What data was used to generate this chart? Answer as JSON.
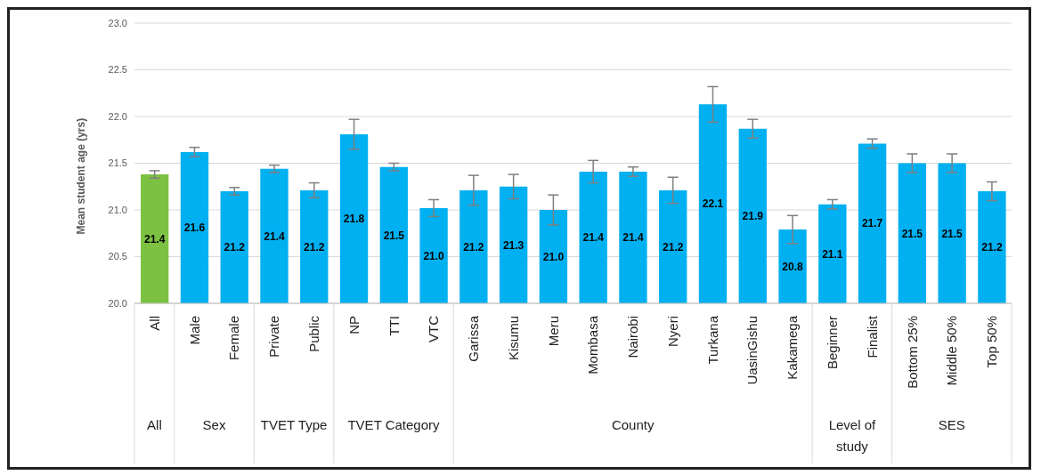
{
  "chart_data": {
    "type": "bar",
    "ylabel": "Mean student age (yrs)",
    "categories": [
      "All",
      "Male",
      "Female",
      "Private",
      "Public",
      "NP",
      "TTI",
      "VTC",
      "Garissa",
      "Kisumu",
      "Meru",
      "Mombasa",
      "Nairobi",
      "Nyeri",
      "Turkana",
      "UasinGishu",
      "Kakamega",
      "Beginner",
      "Finalist",
      "Bottom 25%",
      "Middle 50%",
      "Top 50%"
    ],
    "values": [
      21.38,
      21.62,
      21.2,
      21.44,
      21.21,
      21.81,
      21.46,
      21.02,
      21.21,
      21.25,
      21.0,
      21.41,
      21.41,
      21.21,
      22.13,
      21.87,
      20.79,
      21.06,
      21.71,
      21.5,
      21.5,
      21.2
    ],
    "errors": [
      0.04,
      0.05,
      0.04,
      0.04,
      0.08,
      0.16,
      0.04,
      0.09,
      0.16,
      0.13,
      0.16,
      0.12,
      0.05,
      0.14,
      0.19,
      0.1,
      0.15,
      0.05,
      0.05,
      0.1,
      0.1,
      0.1
    ],
    "value_labels": [
      "21.4",
      "21.6",
      "21.2",
      "21.4",
      "21.2",
      "21.8",
      "21.5",
      "21.0",
      "21.2",
      "21.3",
      "21.0",
      "21.4",
      "21.4",
      "21.2",
      "22.1",
      "21.9",
      "20.8",
      "21.1",
      "21.7",
      "21.5",
      "21.5",
      "21.2"
    ],
    "colors": [
      "#7dc142",
      "#00b0f0",
      "#00b0f0",
      "#00b0f0",
      "#00b0f0",
      "#00b0f0",
      "#00b0f0",
      "#00b0f0",
      "#00b0f0",
      "#00b0f0",
      "#00b0f0",
      "#00b0f0",
      "#00b0f0",
      "#00b0f0",
      "#00b0f0",
      "#00b0f0",
      "#00b0f0",
      "#00b0f0",
      "#00b0f0",
      "#00b0f0",
      "#00b0f0",
      "#00b0f0"
    ],
    "ylim": [
      20,
      23
    ],
    "yticks": [
      {
        "value": 20,
        "label": "20.0"
      },
      {
        "value": 20.5,
        "label": "20.5"
      },
      {
        "value": 21,
        "label": "21.0"
      },
      {
        "value": 21.5,
        "label": "21.5"
      },
      {
        "value": 22,
        "label": "22.0"
      },
      {
        "value": 22.5,
        "label": "22.5"
      },
      {
        "value": 23,
        "label": "23.0"
      }
    ],
    "grid": "y",
    "legend": false,
    "annotations": [
      "All",
      "Sex",
      "TVET Type",
      "TVET Category",
      "County",
      "Level of study",
      "SES"
    ]
  }
}
